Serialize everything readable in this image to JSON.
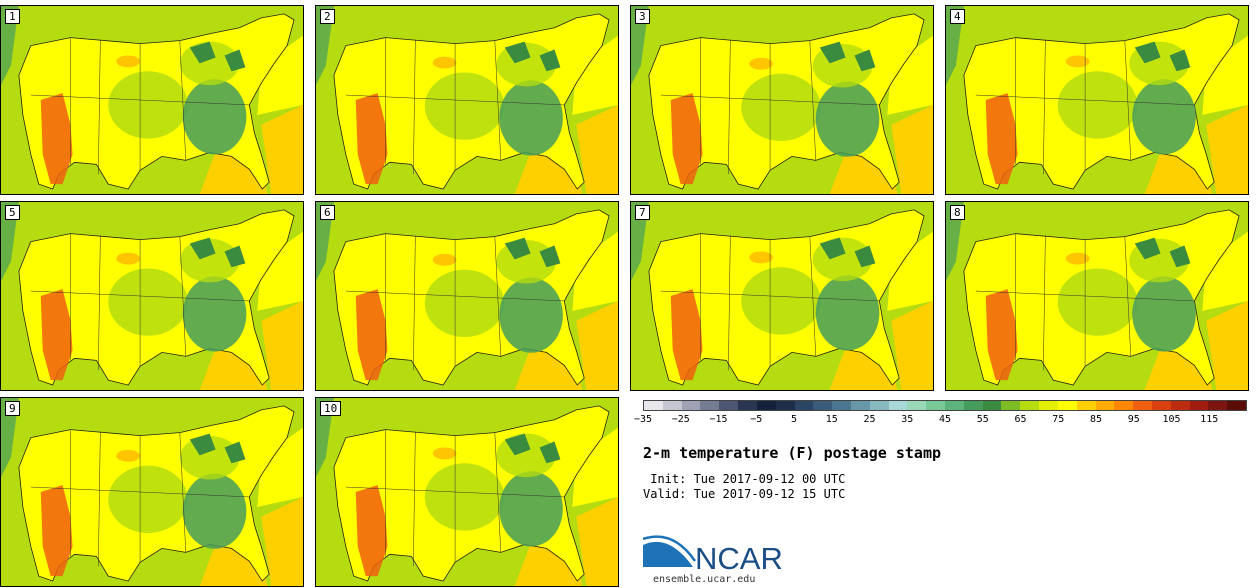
{
  "product": {
    "title": "2-m temperature (F) postage stamp",
    "init": " Init: Tue 2017-09-12 00 UTC",
    "valid": "Valid: Tue 2017-09-12 15 UTC"
  },
  "members": [
    "1",
    "2",
    "3",
    "4",
    "5",
    "6",
    "7",
    "8",
    "9",
    "10"
  ],
  "colorbar": {
    "tick_labels": [
      "−35",
      "−25",
      "−15",
      "−5",
      "5",
      "15",
      "25",
      "35",
      "45",
      "55",
      "65",
      "75",
      "85",
      "95",
      "105",
      "115"
    ],
    "colors": [
      "#e8e8ec",
      "#c4c6d0",
      "#9ea2b4",
      "#767c94",
      "#4c5670",
      "#2a3550",
      "#16223a",
      "#1e2e48",
      "#2a4462",
      "#3a5c78",
      "#4a7690",
      "#6898a8",
      "#88b8c0",
      "#a8d8d8",
      "#98d8b8",
      "#78c898",
      "#5cb47c",
      "#469c5c",
      "#3a8a40",
      "#7cbc24",
      "#b4dc10",
      "#e4f000",
      "#ffff00",
      "#ffd000",
      "#ffac00",
      "#ff8800",
      "#f06010",
      "#d84010",
      "#bc2c10",
      "#a01c10",
      "#7c1410",
      "#5c0c08"
    ]
  },
  "logo": {
    "text": "NCAR",
    "site": "ensemble.ucar.edu"
  },
  "map_colors": {
    "ocean": "#ffd000",
    "land": "#b4dc10",
    "warm": "#ffff00",
    "hot": "#f06010",
    "cool": "#469c5c",
    "lakes": "#3a8a40"
  }
}
